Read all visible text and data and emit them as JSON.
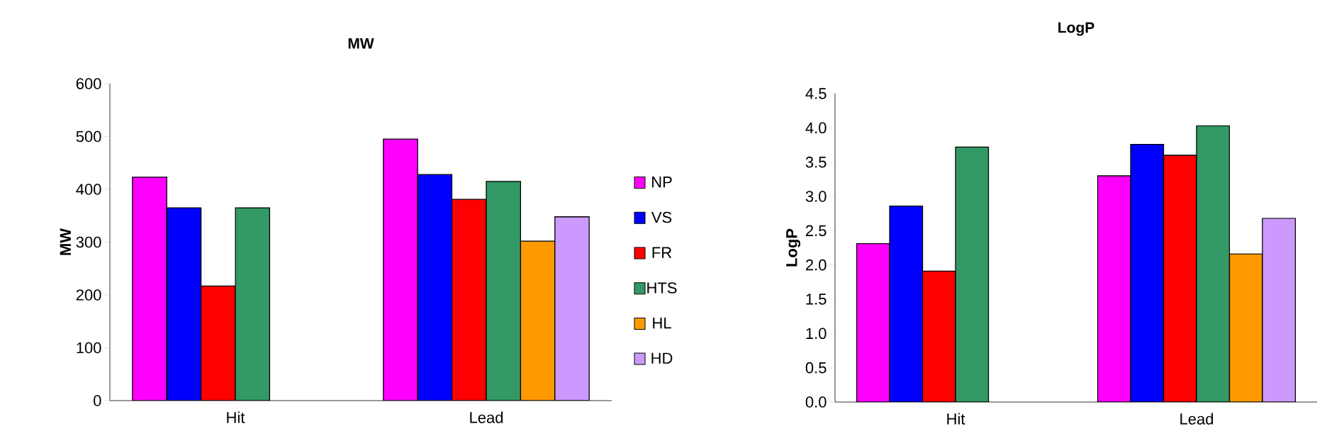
{
  "chart_data": [
    {
      "type": "bar",
      "title": "MW",
      "ylabel": "MW",
      "categories": [
        "Hit",
        "Lead"
      ],
      "ylim": [
        0,
        600
      ],
      "yticks": [
        0,
        100,
        200,
        300,
        400,
        500,
        600
      ],
      "legend": "right",
      "series": [
        {
          "name": "NP",
          "color": "#ff00ff",
          "values": [
            423,
            495
          ]
        },
        {
          "name": "VS",
          "color": "#0000ff",
          "values": [
            365,
            428
          ]
        },
        {
          "name": "FR",
          "color": "#ff0000",
          "values": [
            217,
            381
          ]
        },
        {
          "name": "HTS",
          "color": "#339966",
          "values": [
            365,
            415
          ]
        },
        {
          "name": "HL",
          "color": "#ff9900",
          "values": [
            null,
            302
          ]
        },
        {
          "name": "HD",
          "color": "#cc99ff",
          "values": [
            null,
            348
          ]
        }
      ]
    },
    {
      "type": "bar",
      "title": "LogP",
      "ylabel": "LogP",
      "categories": [
        "Hit",
        "Lead"
      ],
      "ylim": [
        0,
        4.5
      ],
      "yticks": [
        {
          "value": 0,
          "label": "0.0"
        },
        0.5,
        {
          "value": 1,
          "label": "1.0"
        },
        1.5,
        {
          "value": 2,
          "label": "2.0"
        },
        2.5,
        {
          "value": 3,
          "label": "3.0"
        },
        3.5,
        {
          "value": 4,
          "label": "4.0"
        },
        4.5
      ],
      "series": [
        {
          "color": "#ff00ff",
          "values": [
            2.31,
            3.3
          ]
        },
        {
          "color": "#0000ff",
          "values": [
            2.86,
            3.76
          ]
        },
        {
          "color": "#ff0000",
          "values": [
            1.91,
            3.6
          ]
        },
        {
          "color": "#339966",
          "values": [
            3.72,
            4.03
          ]
        },
        {
          "color": "#ff9900",
          "values": [
            null,
            2.16
          ]
        },
        {
          "color": "#cc99ff",
          "values": [
            null,
            2.68
          ]
        }
      ]
    }
  ]
}
